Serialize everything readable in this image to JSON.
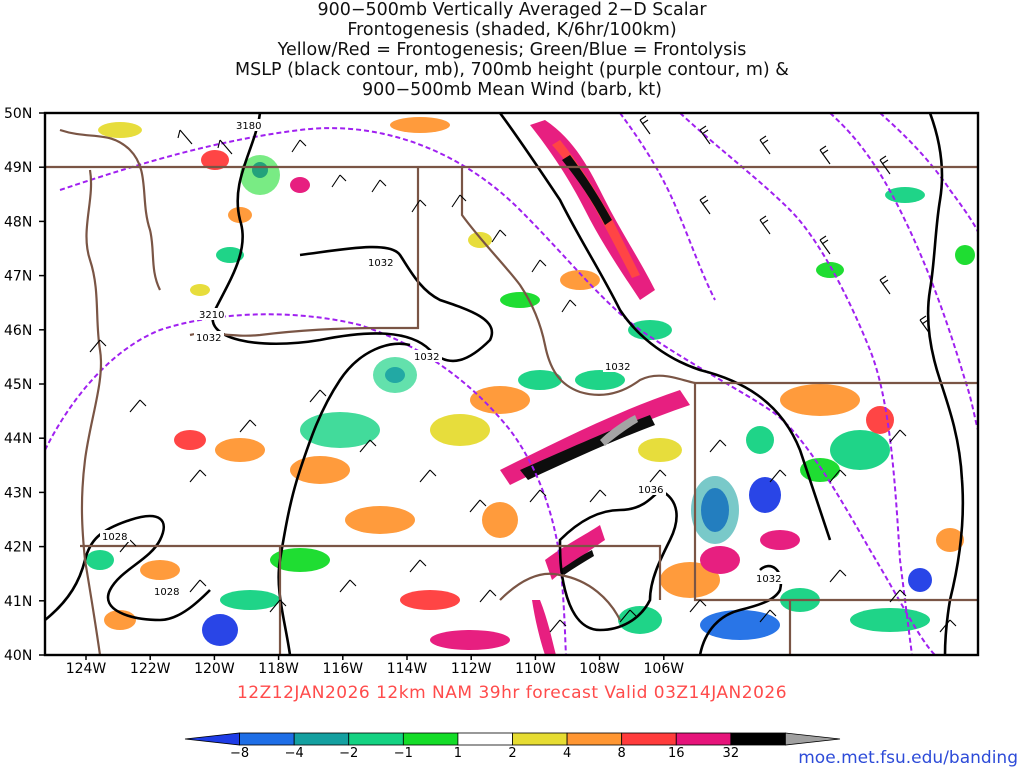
{
  "title_lines": [
    "900−500mb Vertically Averaged 2−D Scalar",
    "Frontogenesis (shaded, K/6hr/100km)",
    "Yellow/Red = Frontogenesis;  Green/Blue = Frontolysis",
    "MSLP (black contour, mb), 700mb height (purple contour, m) &",
    "900−500mb Mean Wind (barb, kt)"
  ],
  "forecast_label": "12Z12JAN2026 12km NAM 39hr forecast Valid 03Z14JAN2026",
  "credit": "moe.met.fsu.edu/banding",
  "axes": {
    "lat_labels": [
      "50N",
      "49N",
      "48N",
      "47N",
      "46N",
      "45N",
      "44N",
      "43N",
      "42N",
      "41N",
      "40N"
    ],
    "lon_labels": [
      "124W",
      "122W",
      "120W",
      "118W",
      "116W",
      "114W",
      "112W",
      "110W",
      "108W",
      "106W"
    ]
  },
  "contour_labels": {
    "height": [
      "3180",
      "3210"
    ],
    "mslp": [
      "1032",
      "1032",
      "1032",
      "1032",
      "1036",
      "1032",
      "1028",
      "1028"
    ]
  },
  "colorbar": {
    "labels": [
      "−8",
      "−4",
      "−2",
      "−1",
      "1",
      "2",
      "4",
      "8",
      "16",
      "32"
    ],
    "colors": [
      "#1e3ce6",
      "#1e6ee6",
      "#14a0a0",
      "#14d282",
      "#14dc28",
      "#ffffff",
      "#e6dc32",
      "#ff9632",
      "#ff3c3c",
      "#e6147a",
      "#000000",
      "#a0a0a0"
    ]
  },
  "colors": {
    "mslp": "#000000",
    "height": "#a020f0",
    "borders": "#7a5545",
    "title": "#111111",
    "forecast": "#ff4b4b",
    "credit": "#2d4bd8"
  }
}
